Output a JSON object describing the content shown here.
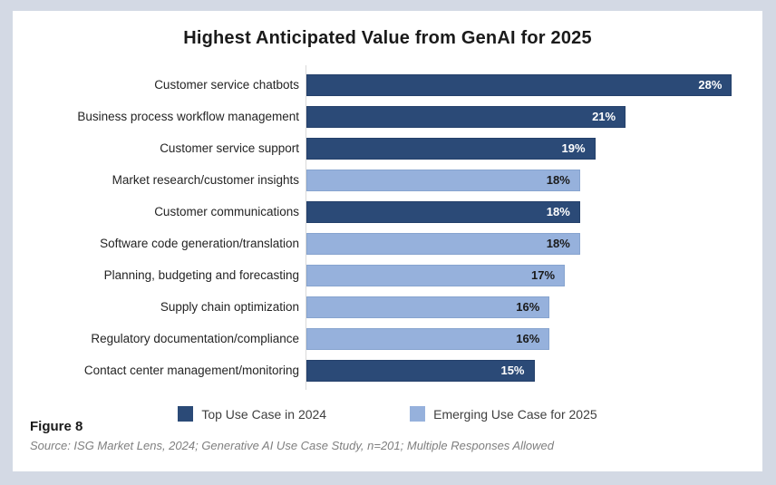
{
  "title": "Highest Anticipated Value from GenAI for 2025",
  "figure_label": "Figure 8",
  "source": "Source: ISG Market Lens, 2024; Generative AI Use Case Study, n=201; Multiple Responses Allowed",
  "colors": {
    "page_background": "#D3D9E4",
    "card_background": "#FFFFFF",
    "axis_line": "#D9D9D9",
    "dark_series": "#2B4A77",
    "light_series": "#96B1DC",
    "dark_series_border": "#24406A",
    "light_series_border": "#87A4CF",
    "value_on_dark": "#FFFFFF",
    "value_on_light": "#1A1A1A"
  },
  "chart_data": {
    "type": "bar",
    "orientation": "horizontal",
    "title": "Highest Anticipated Value from GenAI for 2025",
    "xlabel": "",
    "ylabel": "",
    "xlim": [
      0,
      30
    ],
    "grid": false,
    "value_suffix": "%",
    "legend_position": "bottom",
    "categories": [
      "Customer service chatbots",
      "Business process workflow management",
      "Customer service support",
      "Market research/customer insights",
      "Customer communications",
      "Software code generation/translation",
      "Planning, budgeting and forecasting",
      "Supply chain optimization",
      "Regulatory documentation/compliance",
      "Contact center management/monitoring"
    ],
    "rows": [
      {
        "label": "Customer service chatbots",
        "value": 28,
        "series": "top2024"
      },
      {
        "label": "Business process workflow management",
        "value": 21,
        "series": "top2024"
      },
      {
        "label": "Customer service support",
        "value": 19,
        "series": "top2024"
      },
      {
        "label": "Market research/customer insights",
        "value": 18,
        "series": "emerging2025"
      },
      {
        "label": "Customer communications",
        "value": 18,
        "series": "top2024"
      },
      {
        "label": "Software code generation/translation",
        "value": 18,
        "series": "emerging2025"
      },
      {
        "label": "Planning, budgeting and forecasting",
        "value": 17,
        "series": "emerging2025"
      },
      {
        "label": "Supply chain optimization",
        "value": 16,
        "series": "emerging2025"
      },
      {
        "label": "Regulatory documentation/compliance",
        "value": 16,
        "series": "emerging2025"
      },
      {
        "label": "Contact center management/monitoring",
        "value": 15,
        "series": "top2024"
      }
    ],
    "legend": [
      {
        "key": "top2024",
        "label": "Top Use Case in 2024",
        "color": "#2B4A77"
      },
      {
        "key": "emerging2025",
        "label": "Emerging Use Case for 2025",
        "color": "#96B1DC"
      }
    ]
  }
}
